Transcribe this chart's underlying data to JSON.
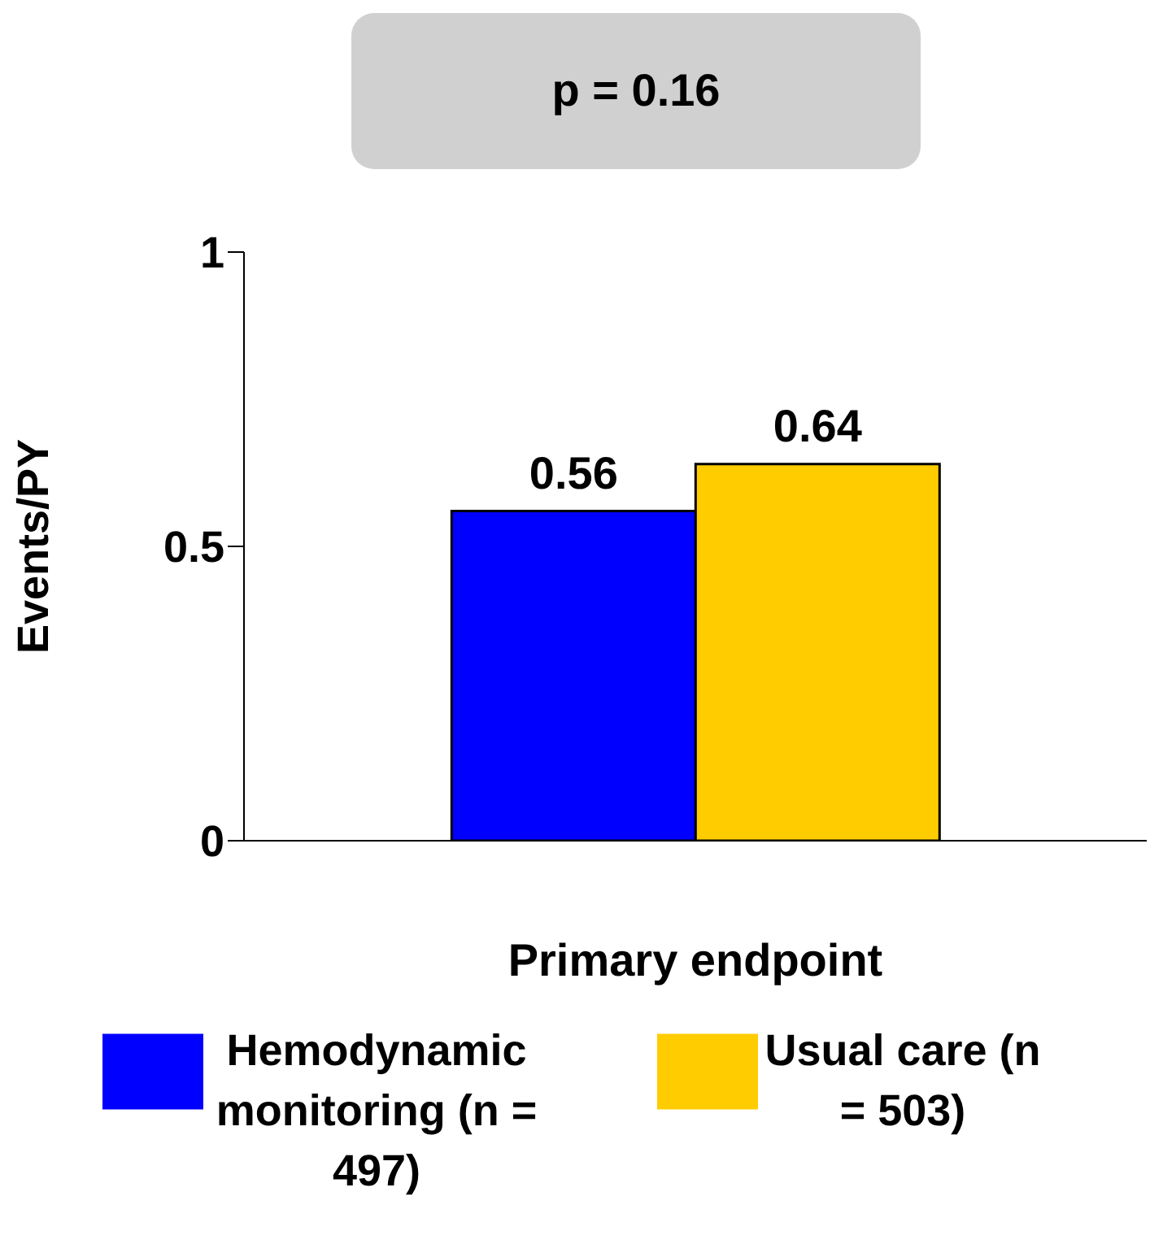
{
  "chart_data": {
    "type": "bar",
    "ylabel": "Events/PY",
    "annotations": [
      "p = 0.16"
    ],
    "categories": [
      "Primary endpoint"
    ],
    "series": [
      {
        "name": "Hemodynamic monitoring (n = 497)",
        "color": "#0000ff",
        "values": [
          0.56
        ]
      },
      {
        "name": "Usual care (n = 503)",
        "color": "#ffcc00",
        "values": [
          0.64
        ]
      }
    ],
    "ylim": [
      0,
      1
    ],
    "yticks": [
      0,
      0.5,
      1
    ],
    "data_labels": true,
    "legend": "bottom",
    "grid": false
  }
}
